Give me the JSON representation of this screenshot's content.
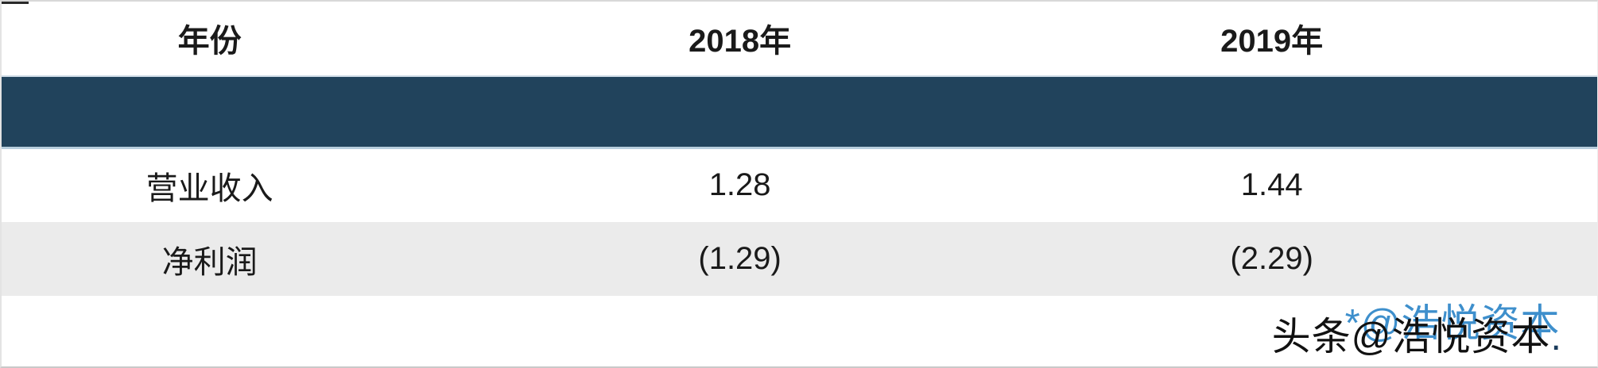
{
  "chart_data": {
    "type": "table",
    "columns": [
      "年份",
      "2018年",
      "2019年"
    ],
    "rows": [
      [
        "营业收入",
        "1.28",
        "1.44"
      ],
      [
        "净利润",
        "(1.29)",
        "(2.29)"
      ]
    ],
    "banner_row_text": "",
    "layout_hint": "header row white bold; empty dark navy banner row below header; alternating white/gray data rows; values in parentheses are negative"
  },
  "watermark": {
    "site": "头条@浩悦资本",
    "overlay": "*@浩悦资本",
    "dot": "."
  },
  "colors": {
    "banner_bg": "#21435c",
    "banner_border_top": "#cfdce6",
    "banner_border_bottom": "#b7cedd",
    "alt_row_bg": "#ebebeb",
    "text": "#1a1a1a",
    "watermark_black": "#111111",
    "watermark_blue": "#2e86c8"
  }
}
